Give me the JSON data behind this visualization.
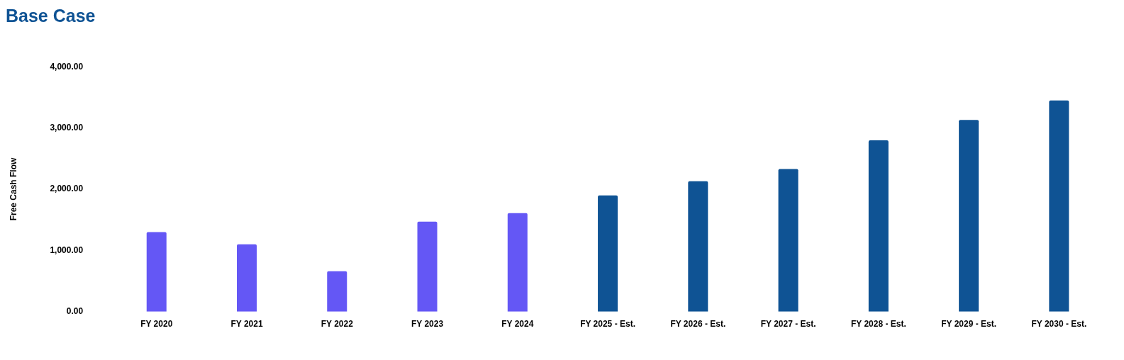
{
  "chart_data": {
    "type": "bar",
    "title": "Base Case",
    "ylabel": "Free Cash Flow",
    "categories": [
      "FY 2020",
      "FY 2021",
      "FY 2022",
      "FY 2023",
      "FY 2024",
      "FY 2025 - Est.",
      "FY 2026 - Est.",
      "FY 2027 - Est.",
      "FY 2028 - Est.",
      "FY 2029 - Est.",
      "FY 2030 - Est."
    ],
    "values": [
      1300,
      1100,
      660,
      1470,
      1610,
      1900,
      2130,
      2330,
      2800,
      3130,
      3450
    ],
    "colors": [
      "#6457f5",
      "#6457f5",
      "#6457f5",
      "#6457f5",
      "#6457f5",
      "#0f5394",
      "#0f5394",
      "#0f5394",
      "#0f5394",
      "#0f5394",
      "#0f5394"
    ],
    "ylim": [
      0,
      4000
    ],
    "yticks": [
      {
        "value": 0,
        "label": "0.00"
      },
      {
        "value": 1000,
        "label": "1,000.00"
      },
      {
        "value": 2000,
        "label": "2,000.00"
      },
      {
        "value": 3000,
        "label": "3,000.00"
      },
      {
        "value": 4000,
        "label": "4,000.00"
      }
    ],
    "grid": false,
    "legend": false
  }
}
